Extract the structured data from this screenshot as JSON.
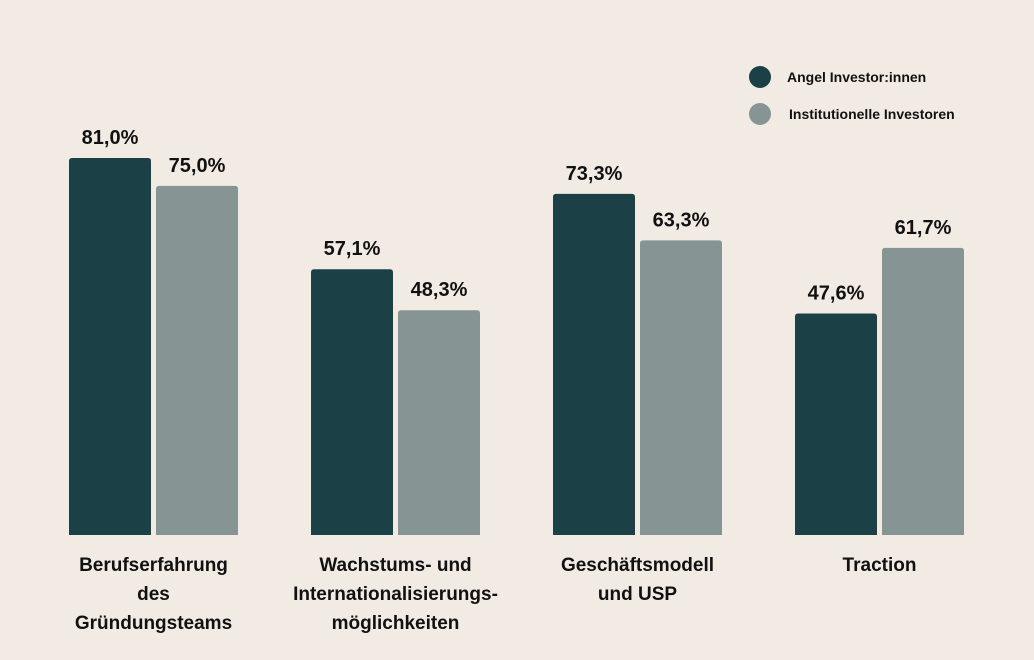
{
  "chart_data": {
    "type": "bar",
    "categories": [
      [
        "Berufserfahrung",
        "des",
        "Gründungsteams"
      ],
      [
        "Wachstums- und",
        "Internationalisierungs-",
        "möglichkeiten"
      ],
      [
        "Geschäftsmodell",
        "und USP"
      ],
      [
        "Traction"
      ]
    ],
    "series": [
      {
        "name": "Angel Investor:innen",
        "color": "#1b4147",
        "values": [
          81.0,
          57.1,
          73.3,
          47.6
        ],
        "labels": [
          "81,0%",
          "57,1%",
          "73,3%",
          "47,6%"
        ]
      },
      {
        "name": "Institutionelle Investoren",
        "color": "#869593",
        "values": [
          75.0,
          48.3,
          63.3,
          61.7
        ],
        "labels": [
          "75,0%",
          "48,3%",
          "63,3%",
          "61,7%"
        ]
      }
    ],
    "ylim": [
      0,
      100
    ],
    "legend_position": "top-right",
    "grid": false,
    "background": "#f2ebe4"
  }
}
